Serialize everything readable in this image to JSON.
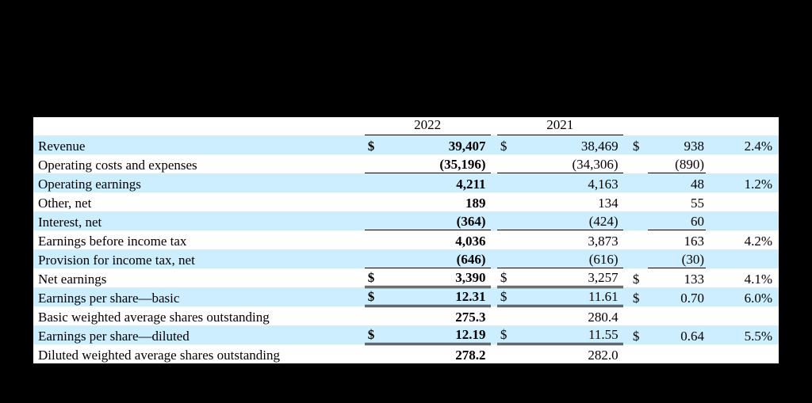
{
  "table": {
    "header": {
      "col1": "2022",
      "col2": "2021"
    },
    "colors": {
      "shade": "#cceeff",
      "background": "#ffffff",
      "text": "#000000",
      "page_bg": "#000000"
    },
    "rows": [
      {
        "label": "Revenue",
        "c1_cur": "$",
        "c1": "39,407",
        "c2_cur": "$",
        "c2": "38,469",
        "v_cur": "$",
        "v": "938",
        "pct": "2.4%",
        "shade": true,
        "c1_bold": true
      },
      {
        "label": "Operating costs and expenses",
        "c1": "(35,196)",
        "c2": "(34,306)",
        "v": "(890)",
        "c1_bold": true,
        "underline_amounts": true
      },
      {
        "label": "Operating earnings",
        "c1": "4,211",
        "c2": "4,163",
        "v": "48",
        "pct": "1.2%",
        "shade": true,
        "c1_bold": true,
        "sum_top": true
      },
      {
        "label": "Other, net",
        "c1": "189",
        "c2": "134",
        "v": "55",
        "c1_bold": true
      },
      {
        "label": "Interest, net",
        "c1": "(364)",
        "c2": "(424)",
        "v": "60",
        "shade": true,
        "c1_bold": true,
        "underline_amounts": true
      },
      {
        "label": "Earnings before income tax",
        "c1": "4,036",
        "c2": "3,873",
        "v": "163",
        "pct": "4.2%",
        "c1_bold": true,
        "sum_top": true
      },
      {
        "label": "Provision for income tax, net",
        "c1": "(646)",
        "c2": "(616)",
        "v": "(30)",
        "shade": true,
        "c1_bold": true,
        "underline_amounts": true
      },
      {
        "label": "Net earnings",
        "c1_cur": "$",
        "c1": "3,390",
        "c2_cur": "$",
        "c2": "3,257",
        "v_cur": "$",
        "v": "133",
        "pct": "4.1%",
        "c1_bold": true,
        "sum_top": true,
        "double_bottom": true
      },
      {
        "label": "Earnings per share—basic",
        "c1_cur": "$",
        "c1": "12.31",
        "c2_cur": "$",
        "c2": "11.61",
        "v_cur": "$",
        "v": "0.70",
        "pct": "6.0%",
        "shade": true,
        "c1_bold": true,
        "double_bottom": true
      },
      {
        "label": "Basic weighted average shares outstanding",
        "c1": "275.3",
        "c2": "280.4",
        "c1_bold": true
      },
      {
        "label": "Earnings per share—diluted",
        "c1_cur": "$",
        "c1": "12.19",
        "c2_cur": "$",
        "c2": "11.55",
        "v_cur": "$",
        "v": "0.64",
        "pct": "5.5%",
        "shade": true,
        "c1_bold": true,
        "double_bottom": true
      },
      {
        "label": "Diluted weighted average shares outstanding",
        "c1": "278.2",
        "c2": "282.0",
        "c1_bold": true
      }
    ]
  }
}
